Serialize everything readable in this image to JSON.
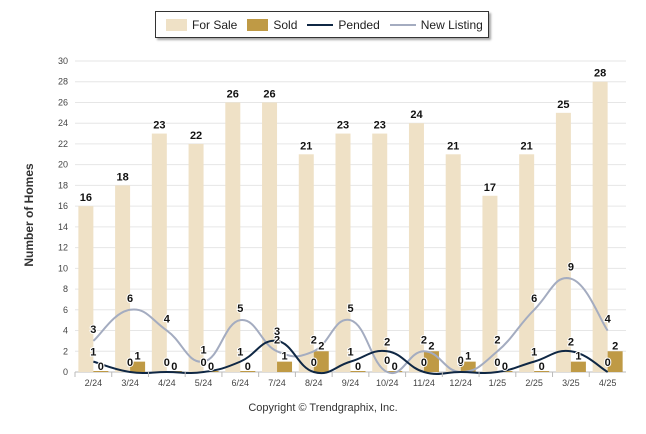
{
  "chart_data": {
    "type": "bar",
    "categories": [
      "2/24",
      "3/24",
      "4/24",
      "5/24",
      "6/24",
      "7/24",
      "8/24",
      "9/24",
      "10/24",
      "11/24",
      "12/24",
      "1/25",
      "2/25",
      "3/25",
      "4/25"
    ],
    "series": [
      {
        "name": "For Sale",
        "type": "bar",
        "color": "#efe1c6",
        "values": [
          16,
          18,
          23,
          22,
          26,
          26,
          21,
          23,
          23,
          24,
          21,
          17,
          21,
          25,
          28
        ]
      },
      {
        "name": "Sold",
        "type": "bar",
        "color": "#bf9a45",
        "values": [
          0,
          1,
          0,
          0,
          0,
          1,
          2,
          0,
          0,
          2,
          1,
          0,
          0,
          1,
          2
        ]
      },
      {
        "name": "Pended",
        "type": "line",
        "color": "#0f2744",
        "values": [
          1,
          0,
          0,
          0,
          1,
          3,
          0,
          1,
          2,
          0,
          0,
          0,
          1,
          2,
          0
        ]
      },
      {
        "name": "New Listing",
        "type": "line",
        "color": "#a4acc0",
        "values": [
          3,
          6,
          4,
          1,
          5,
          2,
          2,
          5,
          0,
          2,
          0,
          2,
          6,
          9,
          4
        ]
      }
    ],
    "ylabel": "Number of Homes",
    "ylim": [
      0,
      30
    ],
    "yticks": [
      0,
      2,
      4,
      6,
      8,
      10,
      12,
      14,
      16,
      18,
      20,
      22,
      24,
      26,
      28,
      30
    ],
    "grid": true,
    "legend": "top-center"
  },
  "footer": {
    "copyright": "Copyright © Trendgraphix, Inc."
  }
}
